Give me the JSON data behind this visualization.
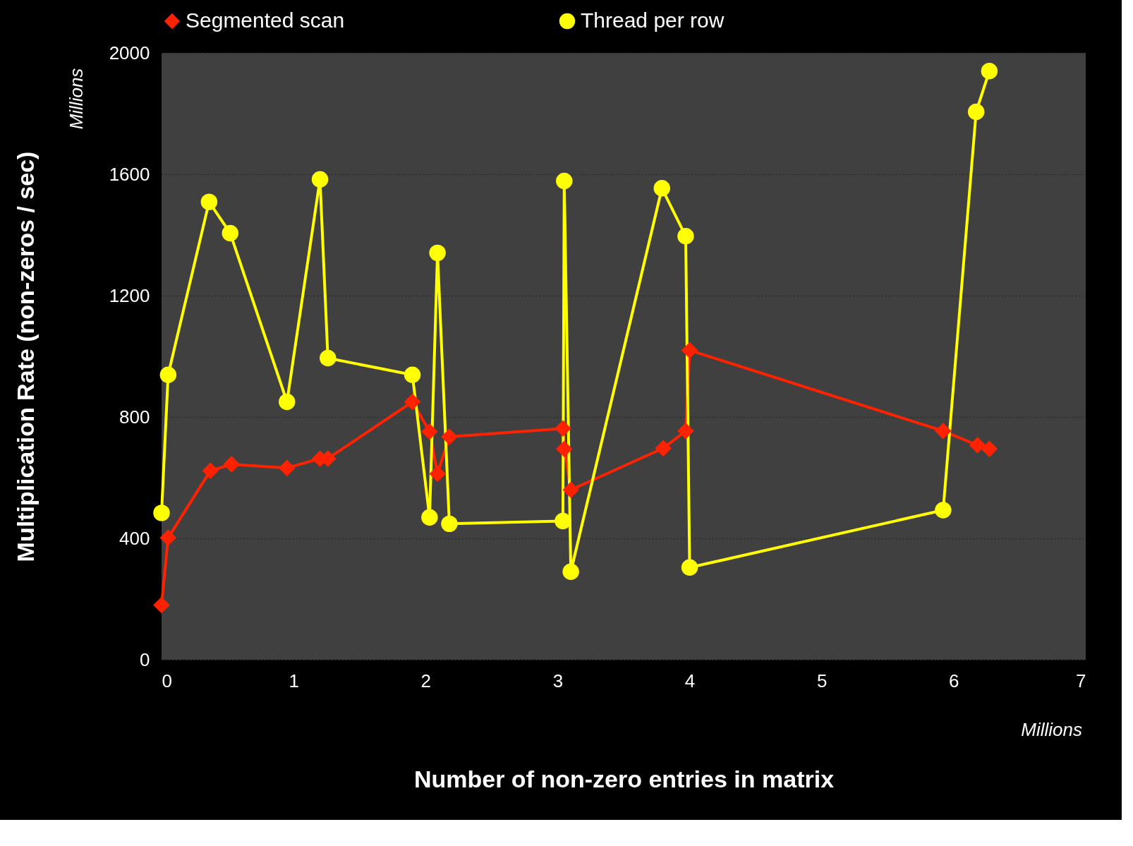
{
  "chart_data": {
    "type": "line",
    "xlabel": "Number of non-zero entries in matrix",
    "ylabel": "Multiplication Rate (non-zeros / sec)",
    "annotations": [
      "Millions",
      "Millions"
    ],
    "xlim": [
      0,
      7
    ],
    "xticks": [
      0,
      1,
      2,
      3,
      4,
      5,
      6,
      7
    ],
    "ylim": [
      0,
      2000
    ],
    "yticks": [
      0,
      400,
      800,
      1200,
      1600,
      2000
    ],
    "grid": "y",
    "legend": "top",
    "series": [
      {
        "name": "Segmented scan",
        "color": "#ff2200",
        "marker": "diamond",
        "x": [
          0,
          0.05,
          0.37,
          0.53,
          0.95,
          1.2,
          1.26,
          1.9,
          2.03,
          2.09,
          2.18,
          3.04,
          3.05,
          3.1,
          3.8,
          3.97,
          4.0,
          5.92,
          6.18,
          6.27
        ],
        "values": [
          180,
          402,
          623,
          644,
          632,
          663,
          663,
          850,
          752,
          613,
          735,
          762,
          695,
          560,
          697,
          754,
          1020,
          754,
          707,
          695
        ]
      },
      {
        "name": "Thread per row",
        "color": "#ffff00",
        "marker": "circle",
        "x": [
          0,
          0.05,
          0.36,
          0.52,
          0.95,
          1.2,
          1.26,
          1.9,
          2.03,
          2.09,
          2.18,
          3.04,
          3.05,
          3.1,
          3.79,
          3.97,
          4.0,
          5.92,
          6.17,
          6.27
        ],
        "values": [
          484,
          939,
          1509,
          1406,
          850,
          1583,
          994,
          939,
          469,
          1341,
          448,
          457,
          1578,
          290,
          1554,
          1396,
          304,
          493,
          1806,
          1940
        ]
      }
    ]
  }
}
